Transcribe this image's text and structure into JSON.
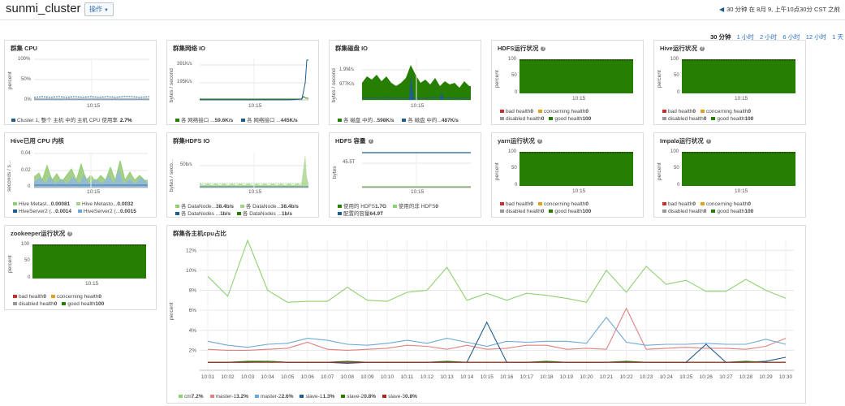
{
  "app": {
    "cluster_name": "sunmi_cluster",
    "ops_label": "操作",
    "time_info": "30 分钟 在 8月 9, 上午10点30分 CST 之前"
  },
  "ranges": [
    "30 分钟",
    "1 小时",
    "2 小时",
    "6 小时",
    "12 小时",
    "1 天"
  ],
  "colors": {
    "green": "#267f00",
    "blue": "#1f5d8f",
    "lightgreen": "#8fd070",
    "red": "#c9504a",
    "lightblue": "#6fa8d6"
  },
  "panels": {
    "cpu": {
      "title": "群集 CPU",
      "ylabel": "percent",
      "ticks": [
        "100%",
        "50%",
        "0%"
      ],
      "x": "10:15",
      "legend": [
        {
          "label": "Cluster 1, 整个 主机 中的 主机 CPU 使用率",
          "value": "2.7%"
        }
      ]
    },
    "net": {
      "title": "群集网络 IO",
      "ylabel": "bytes / second",
      "ticks": [
        "391K/s",
        "195K/s"
      ],
      "x": "10:15",
      "legend": [
        {
          "label": "各 网络接口 ...",
          "value": "59.6K/s"
        },
        {
          "label": "各 网络接口 ...",
          "value": "445K/s"
        }
      ]
    },
    "disk": {
      "title": "群集磁盘 IO",
      "ylabel": "bytes / second",
      "ticks": [
        "1.9M/s",
        "977K/s"
      ],
      "x": "10:15",
      "legend": [
        {
          "label": "各 磁盘 中的...",
          "value": "598K/s"
        },
        {
          "label": "各 磁盘 中的...",
          "value": "487K/s"
        }
      ]
    },
    "hdfs_health": {
      "title": "HDFS运行状况",
      "ylabel": "percent",
      "ticks": [
        "100",
        "50",
        "0"
      ],
      "x": "10:15"
    },
    "hive_health": {
      "title": "Hive运行状况",
      "ylabel": "percent",
      "ticks": [
        "100",
        "50",
        "0"
      ],
      "x": "10:15"
    },
    "hive_cpu": {
      "title": "Hive已用 CPU 内核",
      "ylabel": "seconds / s...",
      "ticks": [
        "0.04",
        "0.02",
        "0"
      ],
      "x": "10:15",
      "legend": [
        {
          "label": "Hive Metast...",
          "value": "0.00081"
        },
        {
          "label": "Hive Metasto...",
          "value": "0.0032"
        },
        {
          "label": "HiveServer2 (...",
          "value": "0.0014"
        },
        {
          "label": "HiveServer2 (...",
          "value": "0.0015"
        }
      ]
    },
    "hdfs_io": {
      "title": "群集HDFS IO",
      "ylabel": "bytes / seco...",
      "ticks": [
        "50b/s"
      ],
      "x": "10:15",
      "legend": [
        {
          "label": "各 DataNode...",
          "value": "38.4b/s"
        },
        {
          "label": "各 DataNode...",
          "value": "38.4b/s"
        },
        {
          "label": "各 DataNodes ...",
          "value": "1b/s"
        },
        {
          "label": "各 DataNodes ...",
          "value": "1b/s"
        }
      ]
    },
    "hdfs_cap": {
      "title": "HDFS 容量",
      "ylabel": "bytes",
      "ticks": [
        "45.5T"
      ],
      "x": "10:15",
      "legend": [
        {
          "label": "使用的 HDFS",
          "value": "1.7G"
        },
        {
          "label": "使用的非 HDFS",
          "value": "0"
        },
        {
          "label": "配置的容量",
          "value": "64.9T"
        }
      ]
    },
    "yarn_health": {
      "title": "yarn运行状况",
      "ylabel": "percent",
      "ticks": [
        "100",
        "50",
        "0"
      ],
      "x": "10:15"
    },
    "impala_health": {
      "title": "Impala运行状况",
      "ylabel": "percent",
      "ticks": [
        "100",
        "50",
        "0"
      ],
      "x": "10:15"
    },
    "zk_health": {
      "title": "zookeeper运行状况",
      "ylabel": "percent",
      "ticks": [
        "100",
        "50",
        "0"
      ],
      "x": "10:15"
    }
  },
  "health_legend": [
    {
      "label": "bad health",
      "value": "0"
    },
    {
      "label": "concerning health",
      "value": "0"
    },
    {
      "label": "disabled health",
      "value": "0"
    },
    {
      "label": "good health",
      "value": "100"
    }
  ],
  "chart_data": {
    "type": "line",
    "title": "群集各主机cpu占比",
    "ylabel": "percent",
    "ylim": [
      0,
      13
    ],
    "yticks": [
      "12%",
      "10%",
      "8%",
      "6%",
      "4%",
      "2%"
    ],
    "x": [
      "10:01",
      "10:02",
      "10:03",
      "10:04",
      "10:05",
      "10:06",
      "10:07",
      "10:08",
      "10:09",
      "10:10",
      "10:11",
      "10:12",
      "10:13",
      "10:14",
      "10:15",
      "10:16",
      "10:17",
      "10:18",
      "10:19",
      "10:20",
      "10:21",
      "10:22",
      "10:23",
      "10:24",
      "10:25",
      "10:26",
      "10:27",
      "10:28",
      "10:29",
      "10:30"
    ],
    "series": [
      {
        "name": "cm",
        "legend_value": "7.2%",
        "color": "#8fd070",
        "values": [
          9.4,
          7.4,
          13.0,
          8.0,
          6.8,
          6.9,
          6.9,
          8.3,
          7.0,
          6.9,
          7.8,
          8.0,
          10.3,
          7.0,
          7.7,
          7.0,
          7.7,
          7.5,
          7.2,
          6.8,
          10.0,
          7.8,
          10.4,
          8.6,
          9.0,
          7.9,
          7.9,
          9.1,
          8.0,
          7.2
        ]
      },
      {
        "name": "master-1",
        "legend_value": "3.2%",
        "color": "#e08080",
        "values": [
          2.1,
          2.0,
          2.0,
          2.1,
          2.2,
          2.8,
          2.1,
          2.0,
          2.1,
          2.2,
          2.5,
          2.4,
          2.1,
          2.5,
          2.1,
          2.2,
          2.5,
          2.5,
          2.1,
          2.2,
          2.1,
          6.2,
          2.1,
          2.2,
          2.3,
          2.2,
          2.2,
          2.1,
          2.4,
          3.2
        ]
      },
      {
        "name": "master-2",
        "legend_value": "2.6%",
        "color": "#6fa8d6",
        "values": [
          2.9,
          2.5,
          2.3,
          2.6,
          2.7,
          3.2,
          3.0,
          2.6,
          2.5,
          2.7,
          3.0,
          2.7,
          3.2,
          2.8,
          2.4,
          2.9,
          2.8,
          2.9,
          2.9,
          2.7,
          5.3,
          2.8,
          2.5,
          2.6,
          2.6,
          2.7,
          2.6,
          2.6,
          3.1,
          2.6
        ]
      },
      {
        "name": "slave-1",
        "legend_value": "1.3%",
        "color": "#1f5d8f",
        "values": [
          0.8,
          0.8,
          0.8,
          0.9,
          0.8,
          0.8,
          0.8,
          0.7,
          0.8,
          0.8,
          0.8,
          0.8,
          0.8,
          0.8,
          4.8,
          0.8,
          0.8,
          0.8,
          0.8,
          0.8,
          0.8,
          0.8,
          0.8,
          0.8,
          0.8,
          2.6,
          0.8,
          0.8,
          0.9,
          1.3
        ]
      },
      {
        "name": "slave-2",
        "legend_value": "0.8%",
        "color": "#267f00",
        "values": [
          0.8,
          0.8,
          0.9,
          0.9,
          0.8,
          0.8,
          0.8,
          0.9,
          0.8,
          0.8,
          0.8,
          0.8,
          0.9,
          0.8,
          0.8,
          0.8,
          0.8,
          0.9,
          0.8,
          0.8,
          0.8,
          0.9,
          0.8,
          0.8,
          0.8,
          0.8,
          0.8,
          0.9,
          0.8,
          0.8
        ]
      },
      {
        "name": "slave-3",
        "legend_value": "0.8%",
        "color": "#b02020",
        "values": [
          0.8,
          0.8,
          0.8,
          0.8,
          0.8,
          0.8,
          0.8,
          0.8,
          0.8,
          0.8,
          0.8,
          0.8,
          0.8,
          0.8,
          0.8,
          0.8,
          0.8,
          0.8,
          0.8,
          0.8,
          0.8,
          0.8,
          0.8,
          0.8,
          0.8,
          0.8,
          0.8,
          0.8,
          0.8,
          0.8
        ]
      }
    ]
  }
}
